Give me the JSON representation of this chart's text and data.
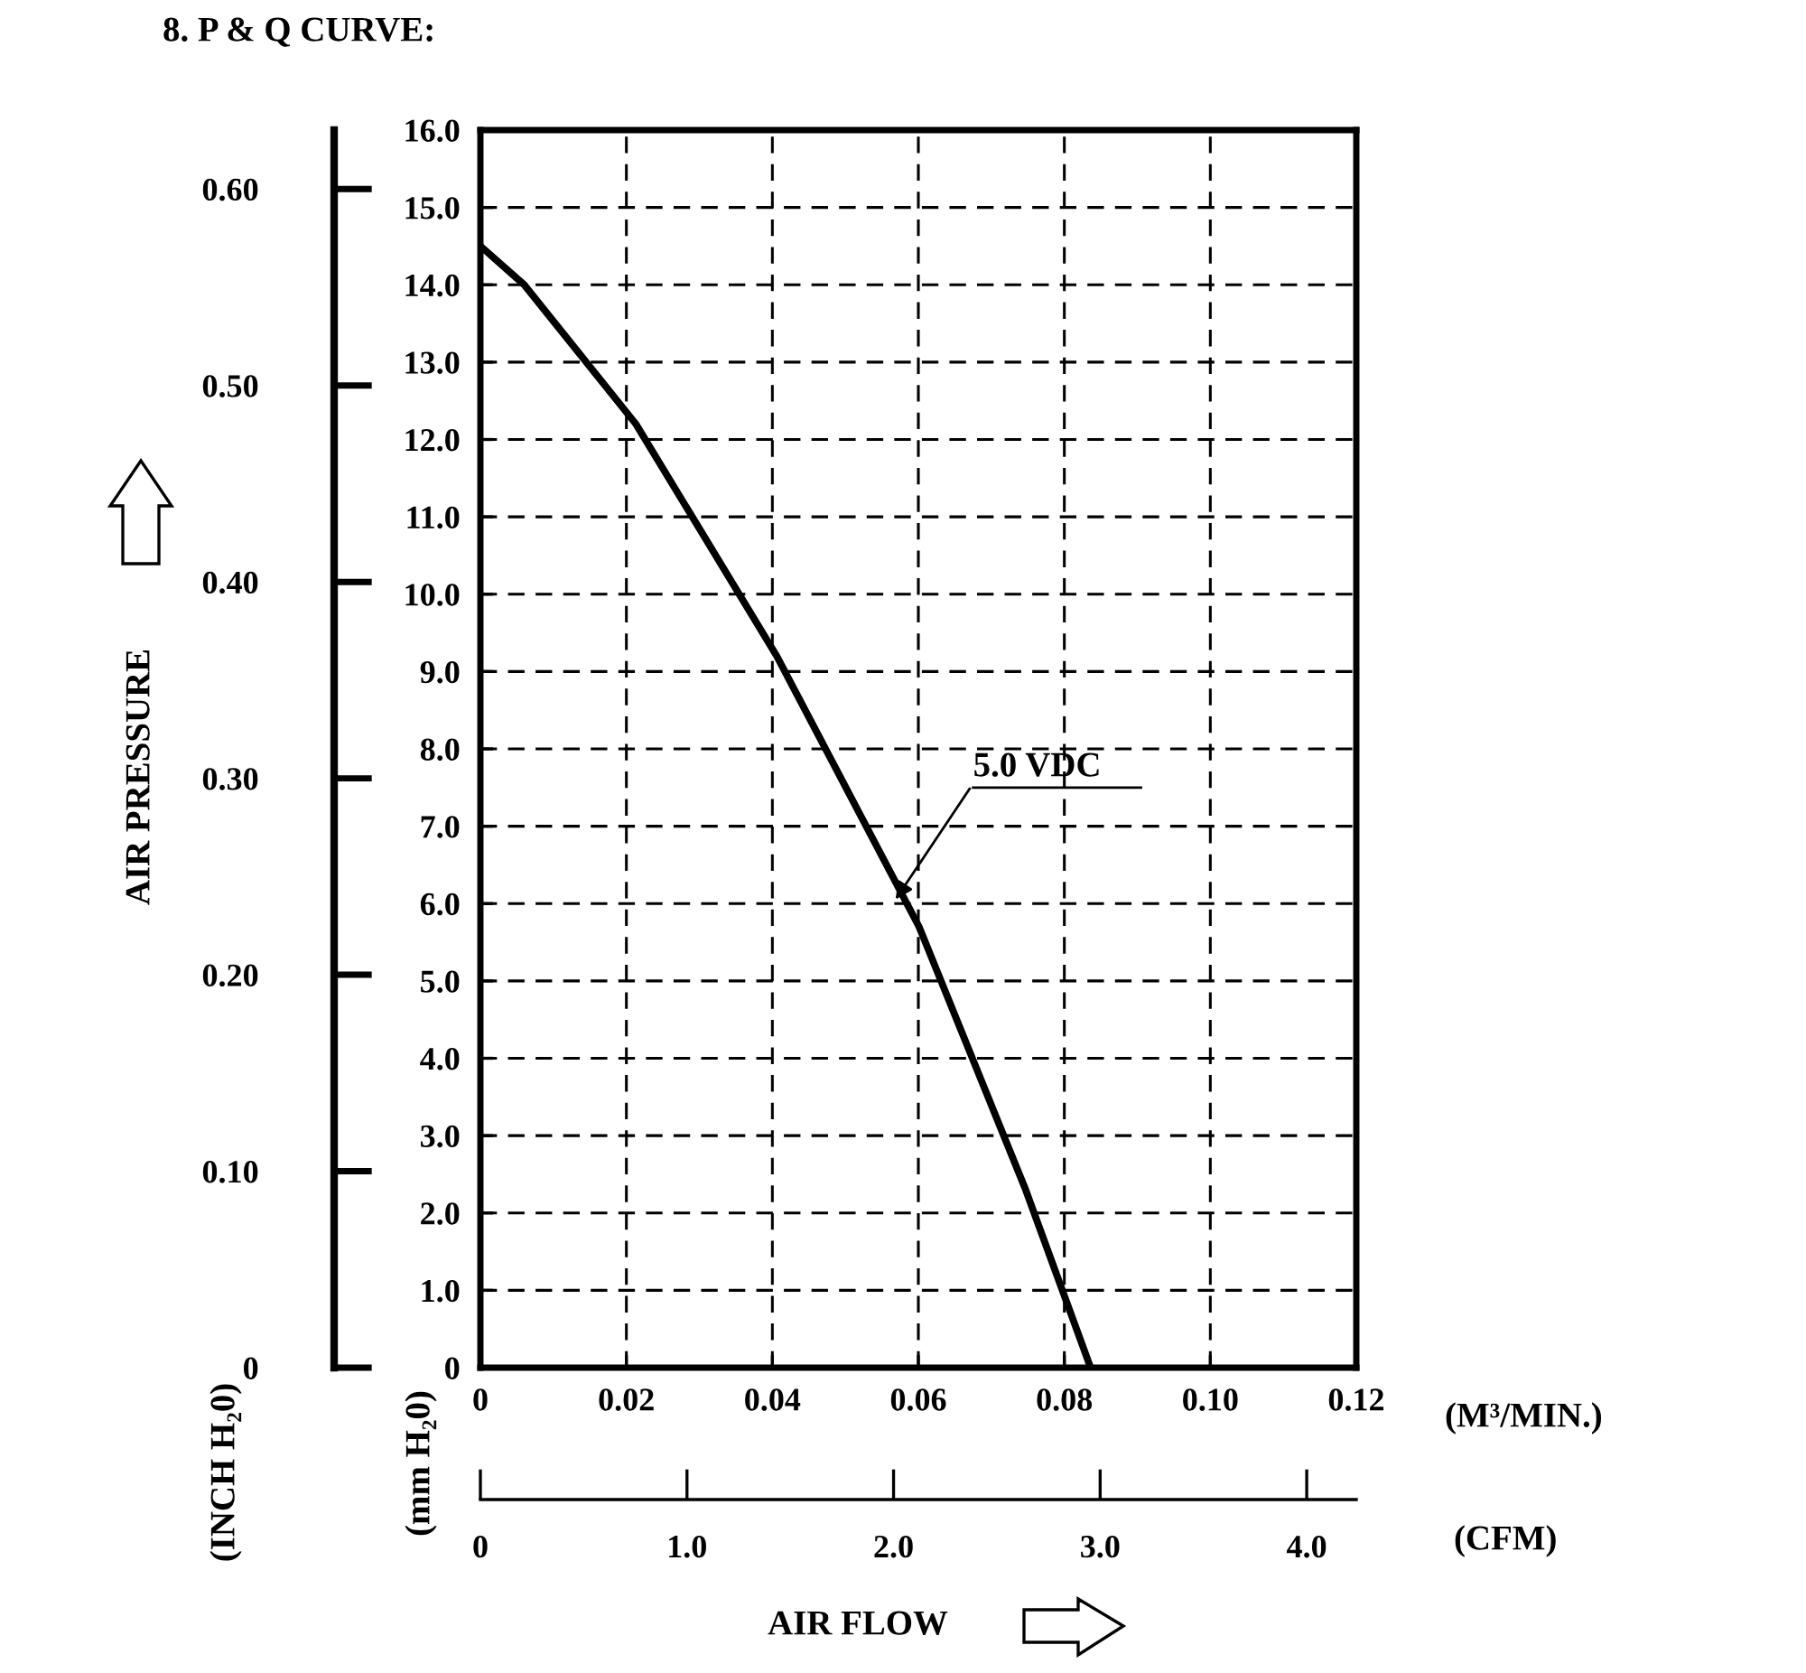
{
  "chart_data": {
    "type": "line",
    "title": "8. P & Q CURVE:",
    "xlabel": "(M³/MIN.)",
    "ylabel": "(mm H₂0)",
    "y2label": "(INCH H₂0)",
    "x2label": "(CFM)",
    "x": [
      0,
      0.006,
      0.0213,
      0.0406,
      0.0601,
      0.0747,
      0.0836
    ],
    "series": [
      {
        "color": "#000000",
        "values": [
          14.5,
          14.0,
          12.2,
          9.2,
          5.7,
          2.3,
          0
        ]
      }
    ],
    "xlim": [
      0,
      0.12
    ],
    "xticks": [
      0,
      0.02,
      0.04,
      0.06,
      0.08,
      {
        "value": 0.1,
        "label": "0.10"
      },
      0.12
    ],
    "ylim": [
      0,
      16
    ],
    "yticks": [
      0,
      {
        "value": 1,
        "label": "1.0"
      },
      {
        "value": 2,
        "label": "2.0"
      },
      {
        "value": 3,
        "label": "3.0"
      },
      {
        "value": 4,
        "label": "4.0"
      },
      {
        "value": 5,
        "label": "5.0"
      },
      {
        "value": 6,
        "label": "6.0"
      },
      {
        "value": 7,
        "label": "7.0"
      },
      {
        "value": 8,
        "label": "8.0"
      },
      {
        "value": 9,
        "label": "9.0"
      },
      {
        "value": 10,
        "label": "10.0"
      },
      {
        "value": 11,
        "label": "11.0"
      },
      {
        "value": 12,
        "label": "12.0"
      },
      {
        "value": 13,
        "label": "13.0"
      },
      {
        "value": 14,
        "label": "14.0"
      },
      {
        "value": 15,
        "label": "15.0"
      },
      {
        "value": 16,
        "label": "16.0"
      }
    ],
    "y2lim": [
      0,
      0.63
    ],
    "y2ticks": [
      0,
      {
        "value": 0.1,
        "label": "0.10"
      },
      {
        "value": 0.2,
        "label": "0.20"
      },
      {
        "value": 0.3,
        "label": "0.30"
      },
      {
        "value": 0.4,
        "label": "0.40"
      },
      {
        "value": 0.5,
        "label": "0.50"
      },
      {
        "value": 0.6,
        "label": "0.60"
      }
    ],
    "x2lim": [
      0,
      4.24
    ],
    "x2ticks": [
      0,
      {
        "value": 1,
        "label": "1.0"
      },
      {
        "value": 2,
        "label": "2.0"
      },
      {
        "value": 3,
        "label": "3.0"
      },
      {
        "value": 4,
        "label": "4.0"
      }
    ],
    "annotations": [
      {
        "text": "5.0 VDC",
        "x": 0.0565,
        "y": 6.0
      },
      "AIR PRESSURE",
      "AIR FLOW"
    ],
    "grid": true,
    "line_style": "solid",
    "marker": "none",
    "legend": false
  }
}
